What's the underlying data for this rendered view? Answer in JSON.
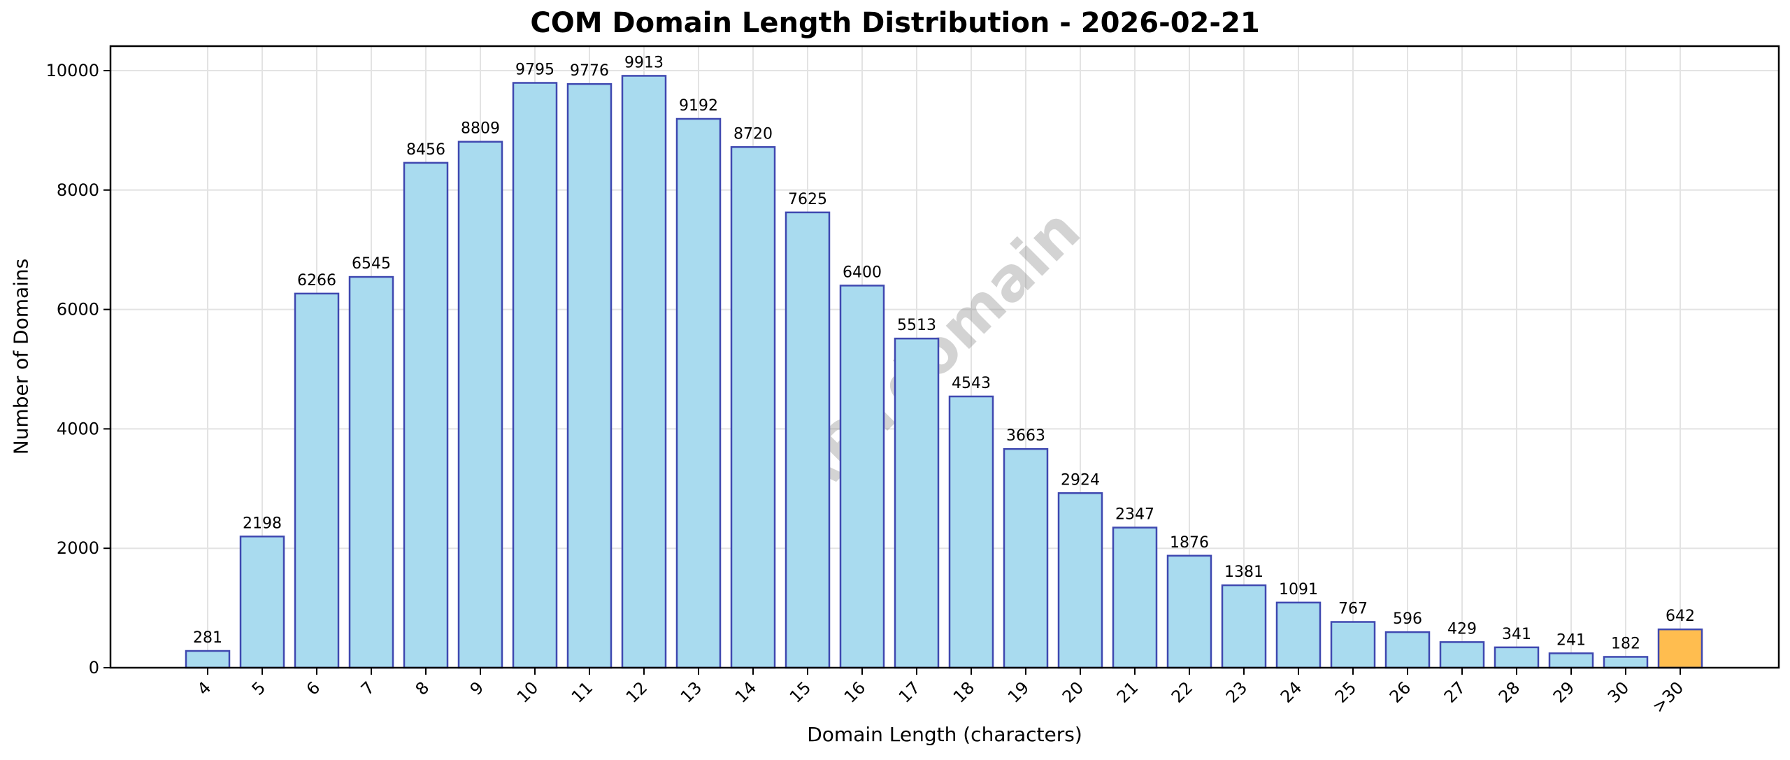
{
  "chart_data": {
    "type": "bar",
    "title": "COM Domain Length Distribution - 2026-02-21",
    "xlabel": "Domain Length (characters)",
    "ylabel": "Number of Domains",
    "categories": [
      "4",
      "5",
      "6",
      "7",
      "8",
      "9",
      "10",
      "11",
      "12",
      "13",
      "14",
      "15",
      "16",
      "17",
      "18",
      "19",
      "20",
      "21",
      "22",
      "23",
      "24",
      "25",
      "26",
      "27",
      "28",
      "29",
      "30",
      ">30"
    ],
    "values": [
      281,
      2198,
      6266,
      6545,
      8456,
      8809,
      9795,
      9776,
      9913,
      9192,
      8720,
      7625,
      6400,
      5513,
      4543,
      3663,
      2924,
      2347,
      1876,
      1381,
      1091,
      767,
      596,
      429,
      341,
      241,
      182,
      642
    ],
    "yticks": [
      0,
      2000,
      4000,
      6000,
      8000,
      10000
    ],
    "ylim": [
      0,
      10400
    ],
    "grid": true,
    "legend": null,
    "bar_color": "#a9dbef",
    "bar_edge_color": "#3f48b0",
    "highlight_category": ">30",
    "highlight_color": "#ffbd4f",
    "watermark": "ABTdomain",
    "annotations": "value labels above each bar"
  }
}
